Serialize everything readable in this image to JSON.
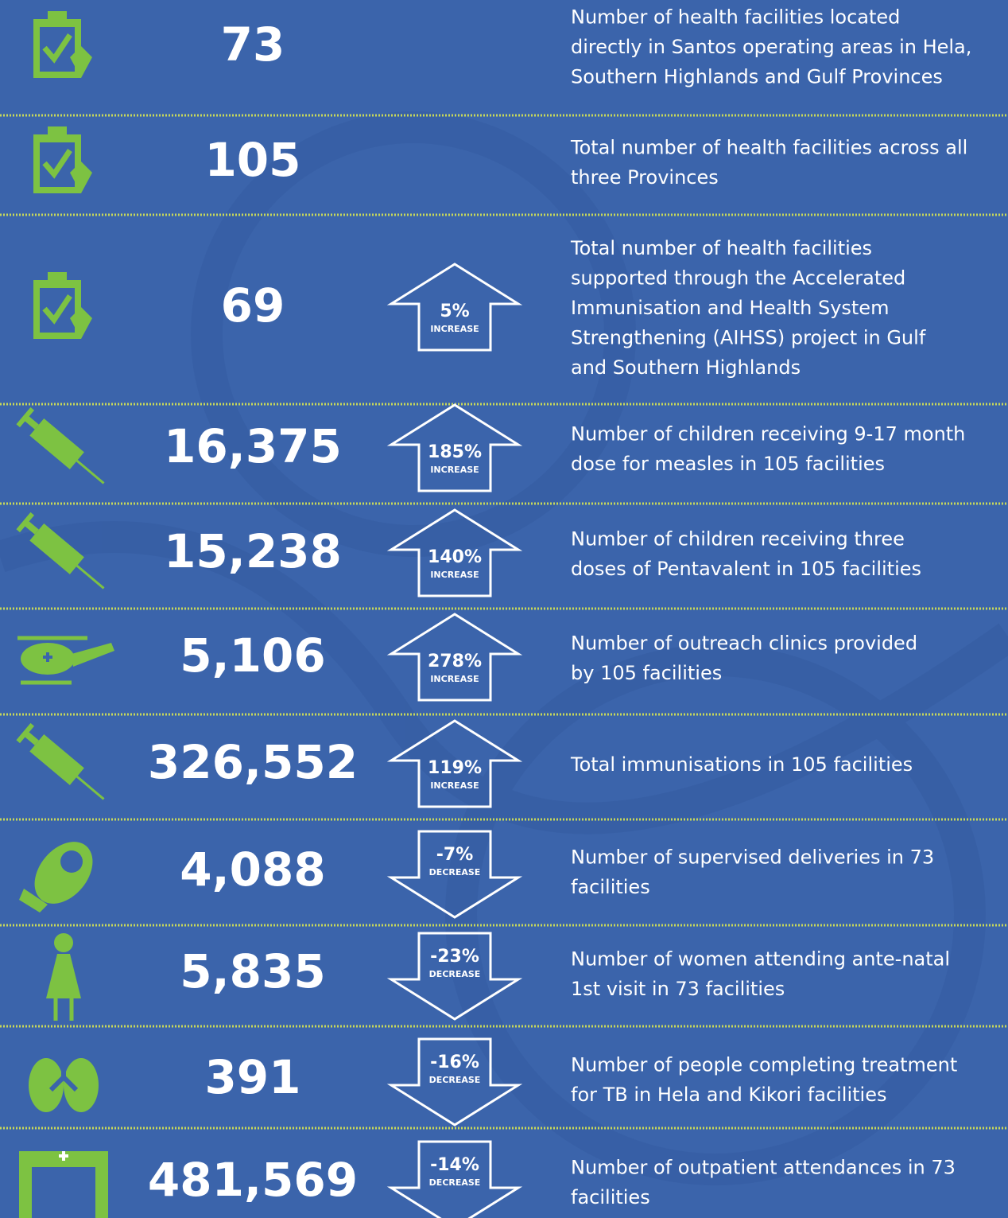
{
  "rows": [
    {
      "value": "73",
      "description": [
        "Number of health facilities located",
        "directly in Santos operating areas in Hela,",
        "Southern Highlands and Gulf Provinces"
      ]
    },
    {
      "value": "105",
      "description": [
        "Total number of health facilities across all",
        "three Provinces"
      ]
    },
    {
      "value": "69",
      "change": {
        "percent": "5%",
        "label": "INCREASE"
      },
      "description": [
        "Total number of health facilities",
        "supported through the Accelerated",
        "Immunisation and Health System",
        "Strengthening (AIHSS) project in Gulf",
        "and Southern Highlands"
      ]
    },
    {
      "value": "16,375",
      "change": {
        "percent": "185%",
        "label": "INCREASE"
      },
      "description": [
        "Number of children receiving 9-17 month",
        "dose for measles in 105 facilities"
      ]
    },
    {
      "value": "15,238",
      "change": {
        "percent": "140%",
        "label": "INCREASE"
      },
      "description": [
        "Number of children receiving three",
        "doses of Pentavalent in 105 facilities"
      ]
    },
    {
      "value": "5,106",
      "change": {
        "percent": "278%",
        "label": "INCREASE"
      },
      "description": [
        "Number of outreach clinics provided",
        "by 105 facilities"
      ]
    },
    {
      "value": "326,552",
      "change": {
        "percent": "119%",
        "label": "INCREASE"
      },
      "description": [
        "Total immunisations in 105 facilities"
      ]
    },
    {
      "value": "4,088",
      "change": {
        "percent": "-7%",
        "label": "DECREASE"
      },
      "description": [
        "Number of supervised deliveries in 73",
        "facilities"
      ]
    },
    {
      "value": "5,835",
      "change": {
        "percent": "-23%",
        "label": "DECREASE"
      },
      "description": [
        "Number of women attending ante-natal",
        "1st visit in 73 facilities"
      ]
    },
    {
      "value": "391",
      "change": {
        "percent": "-16%",
        "label": "DECREASE"
      },
      "description": [
        "Number of people completing treatment",
        "for TB in Hela and Kikori facilities"
      ]
    },
    {
      "value": "481,569",
      "change": {
        "percent": "-14%",
        "label": "DECREASE"
      },
      "description": [
        "Number of outpatient attendances in 73",
        "facilities"
      ]
    }
  ]
}
